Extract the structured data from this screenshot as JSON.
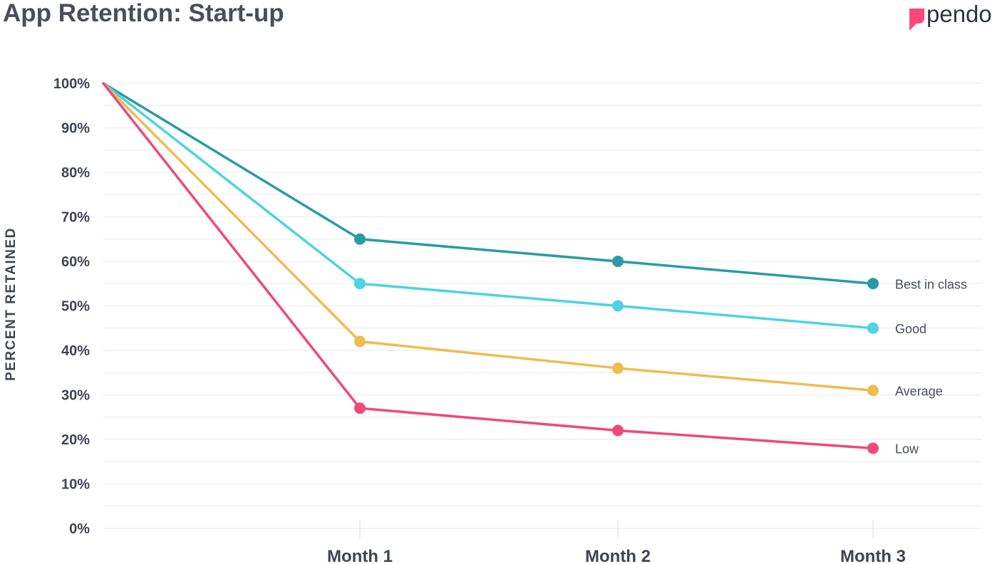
{
  "header": {
    "title": "App Retention: Start-up",
    "brand": "pendo",
    "brand_color": "#ff4876",
    "brand_icon": "pendo-logo-icon"
  },
  "chart_data": {
    "type": "line",
    "title": "App Retention: Start-up",
    "xlabel": "",
    "ylabel": "PERCENT RETAINED",
    "x": [
      "",
      "Month 1",
      "Month 2",
      "Month 3"
    ],
    "categories": [
      "Month 1",
      "Month 2",
      "Month 3"
    ],
    "ylim": [
      0,
      100
    ],
    "yticks": [
      "100%",
      "90%",
      "80%",
      "70%",
      "60%",
      "50%",
      "40%",
      "30%",
      "20%",
      "10%",
      "0%"
    ],
    "grid": true,
    "legend": "right (inline labels at line ends)",
    "series": [
      {
        "name": "Best in class",
        "color": "#2a9ba6",
        "values": [
          100,
          65,
          60,
          55
        ]
      },
      {
        "name": "Good",
        "color": "#4dd3e2",
        "values": [
          100,
          55,
          50,
          45
        ]
      },
      {
        "name": "Average",
        "color": "#eebd50",
        "values": [
          100,
          42,
          36,
          31
        ]
      },
      {
        "name": "Low",
        "color": "#ee4a79",
        "values": [
          100,
          27,
          22,
          18
        ]
      }
    ]
  }
}
